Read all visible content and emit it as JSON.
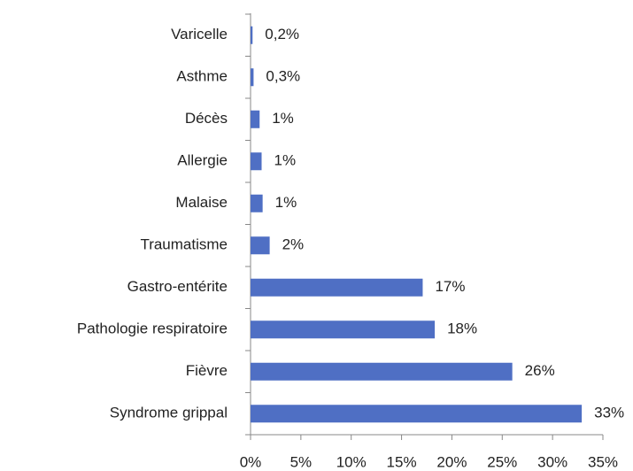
{
  "chart_data": {
    "type": "hbar",
    "categories": [
      "Varicelle",
      "Asthme",
      "Décès",
      "Allergie",
      "Malaise",
      "Traumatisme",
      "Gastro-entérite",
      "Pathologie respiratoire",
      "Fièvre",
      "Syndrome grippal"
    ],
    "values": [
      0.2,
      0.3,
      0.9,
      1.1,
      1.2,
      1.9,
      17.1,
      18.3,
      26,
      32.9
    ],
    "value_labels": [
      "0,2%",
      "0,3%",
      "1%",
      "1%",
      "1%",
      "2%",
      "17%",
      "18%",
      "26%",
      "33%"
    ],
    "color": "#4f6fc4",
    "xlim": [
      0,
      35
    ],
    "xticks": [
      {
        "value": 0,
        "label": "0%"
      },
      {
        "value": 5,
        "label": "5%"
      },
      {
        "value": 10,
        "label": "10%"
      },
      {
        "value": 15,
        "label": "15%"
      },
      {
        "value": 20,
        "label": "20%"
      },
      {
        "value": 25,
        "label": "25%"
      },
      {
        "value": 30,
        "label": "30%"
      },
      {
        "value": 35,
        "label": "35%"
      }
    ],
    "grid": false
  }
}
